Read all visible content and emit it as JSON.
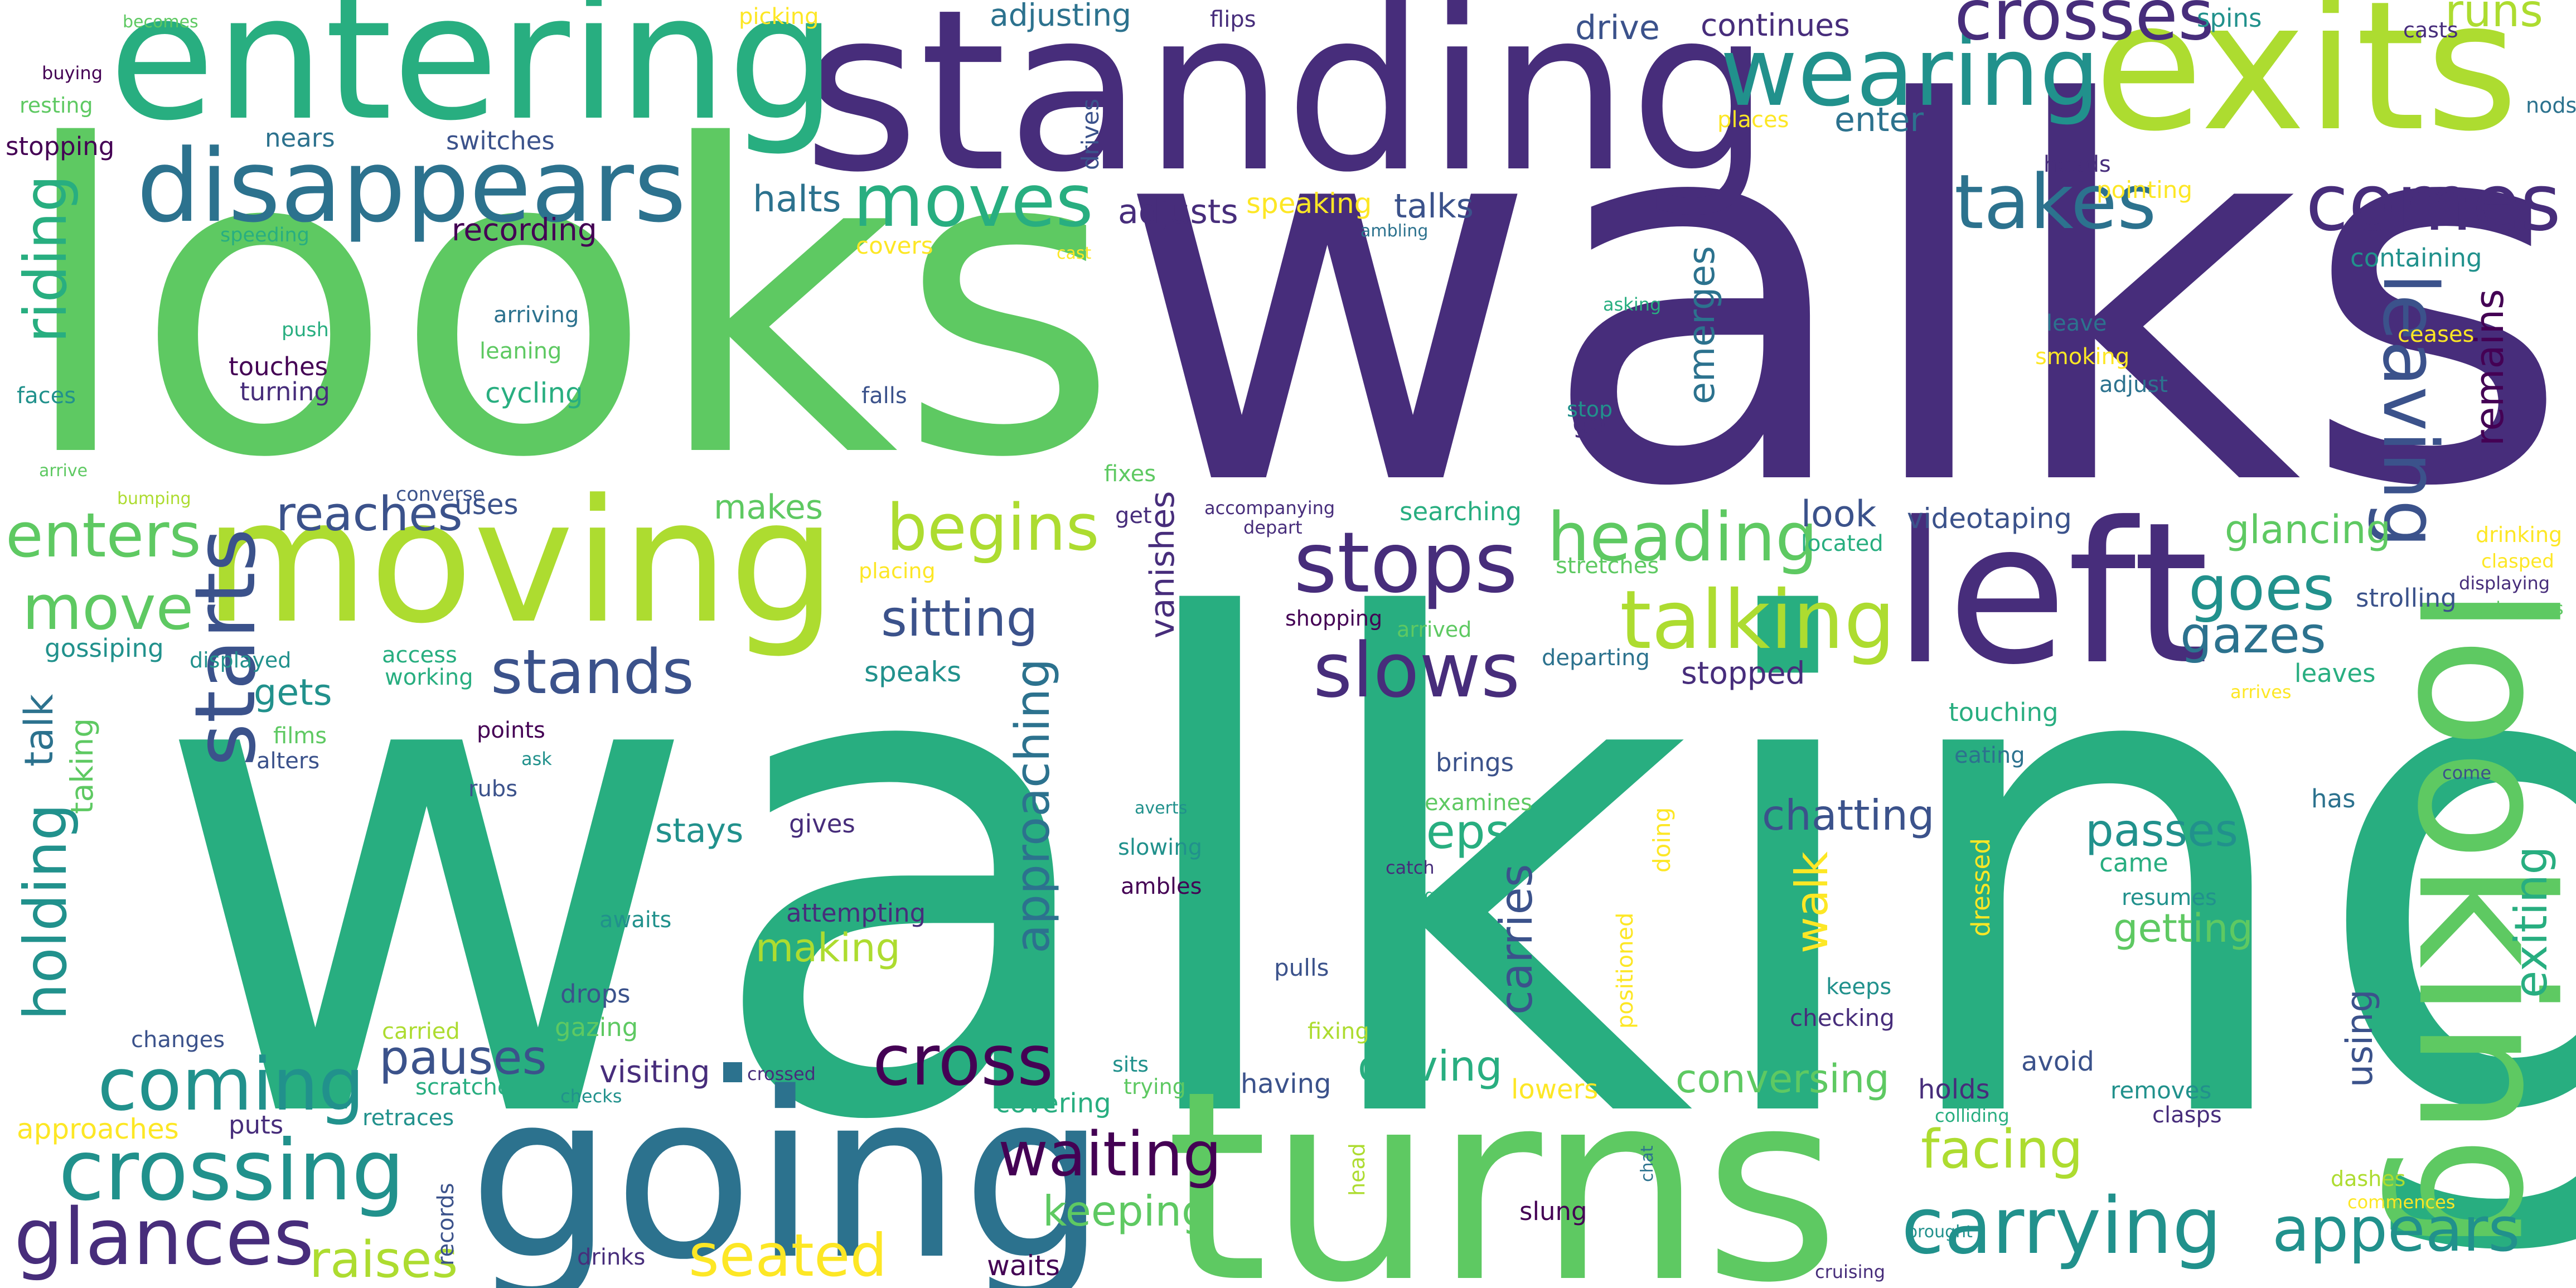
{
  "colors": {
    "c1": "#440154",
    "c2": "#472D7B",
    "c3": "#3B528B",
    "c4": "#2C728E",
    "c5": "#21918C",
    "c6": "#28AE80",
    "c7": "#5EC962",
    "c8": "#ADDC30",
    "c9": "#FDE725"
  },
  "words": [
    {
      "text": "walking",
      "color": "c6"
    },
    {
      "text": "walks",
      "color": "c2"
    },
    {
      "text": "looks",
      "color": "c7"
    },
    {
      "text": "turns",
      "color": "c7"
    },
    {
      "text": "going",
      "color": "c4"
    },
    {
      "text": "standing",
      "color": "c2"
    },
    {
      "text": "looking",
      "color": "c7"
    },
    {
      "text": "entering",
      "color": "c6"
    },
    {
      "text": "exits",
      "color": "c8"
    },
    {
      "text": "moving",
      "color": "c8"
    },
    {
      "text": "left",
      "color": "c2"
    },
    {
      "text": "disappears",
      "color": "c4"
    },
    {
      "text": "wearing",
      "color": "c5"
    },
    {
      "text": "crosses",
      "color": "c2"
    },
    {
      "text": "takes",
      "color": "c4"
    },
    {
      "text": "comes",
      "color": "c2"
    },
    {
      "text": "leaving",
      "color": "c3"
    },
    {
      "text": "moves",
      "color": "c6"
    },
    {
      "text": "stops",
      "color": "c2"
    },
    {
      "text": "slows",
      "color": "c2"
    },
    {
      "text": "talking",
      "color": "c8"
    },
    {
      "text": "heading",
      "color": "c7"
    },
    {
      "text": "goes",
      "color": "c5"
    },
    {
      "text": "gazes",
      "color": "c4"
    },
    {
      "text": "begins",
      "color": "c8"
    },
    {
      "text": "stands",
      "color": "c3"
    },
    {
      "text": "starts",
      "color": "c3"
    },
    {
      "text": "coming",
      "color": "c5"
    },
    {
      "text": "crossing",
      "color": "c5"
    },
    {
      "text": "glances",
      "color": "c2"
    },
    {
      "text": "cross",
      "color": "c1"
    },
    {
      "text": "waiting",
      "color": "c1"
    },
    {
      "text": "carrying",
      "color": "c5"
    },
    {
      "text": "appears",
      "color": "c5"
    },
    {
      "text": "enters",
      "color": "c7"
    },
    {
      "text": "move",
      "color": "c7"
    },
    {
      "text": "riding",
      "color": "c6"
    },
    {
      "text": "holding",
      "color": "c5"
    },
    {
      "text": "sitting",
      "color": "c3"
    },
    {
      "text": "steps",
      "color": "c6"
    },
    {
      "text": "passes",
      "color": "c5"
    },
    {
      "text": "seated",
      "color": "c9"
    },
    {
      "text": "raises",
      "color": "c8"
    },
    {
      "text": "pauses",
      "color": "c3"
    },
    {
      "text": "reaches",
      "color": "c3"
    },
    {
      "text": "facing",
      "color": "c8"
    },
    {
      "text": "chatting",
      "color": "c3"
    },
    {
      "text": "getting",
      "color": "c7"
    },
    {
      "text": "making",
      "color": "c8"
    },
    {
      "text": "conversing",
      "color": "c7"
    },
    {
      "text": "driving",
      "color": "c6"
    },
    {
      "text": "keeping",
      "color": "c7"
    },
    {
      "text": "approaching",
      "color": "c4"
    },
    {
      "text": "carries",
      "color": "c3"
    },
    {
      "text": "walk",
      "color": "c9"
    },
    {
      "text": "emerges",
      "color": "c4"
    },
    {
      "text": "remains",
      "color": "c1"
    },
    {
      "text": "glancing",
      "color": "c7"
    },
    {
      "text": "runs",
      "color": "c8"
    },
    {
      "text": "exiting",
      "color": "c6"
    },
    {
      "text": "halts",
      "color": "c4"
    },
    {
      "text": "adjusts",
      "color": "c2"
    },
    {
      "text": "talks",
      "color": "c3"
    },
    {
      "text": "drive",
      "color": "c3"
    },
    {
      "text": "continues",
      "color": "c2"
    },
    {
      "text": "enter",
      "color": "c4"
    },
    {
      "text": "adjusting",
      "color": "c4"
    },
    {
      "text": "spins",
      "color": "c5"
    },
    {
      "text": "recording",
      "color": "c1"
    },
    {
      "text": "speaking",
      "color": "c9"
    },
    {
      "text": "nears",
      "color": "c4"
    },
    {
      "text": "switches",
      "color": "c3"
    },
    {
      "text": "stopping",
      "color": "c1"
    },
    {
      "text": "look",
      "color": "c3"
    },
    {
      "text": "located",
      "color": "c6"
    },
    {
      "text": "videotaping",
      "color": "c3"
    },
    {
      "text": "stopped",
      "color": "c2"
    },
    {
      "text": "touching",
      "color": "c6"
    },
    {
      "text": "eating",
      "color": "c4"
    },
    {
      "text": "strolling",
      "color": "c3"
    },
    {
      "text": "leaves",
      "color": "c6"
    },
    {
      "text": "makes",
      "color": "c7"
    },
    {
      "text": "uses",
      "color": "c3"
    },
    {
      "text": "gets",
      "color": "c5"
    },
    {
      "text": "talk",
      "color": "c4"
    },
    {
      "text": "taking",
      "color": "c7"
    },
    {
      "text": "gossiping",
      "color": "c5"
    },
    {
      "text": "films",
      "color": "c7"
    },
    {
      "text": "alters",
      "color": "c3"
    },
    {
      "text": "points",
      "color": "c1"
    },
    {
      "text": "rubs",
      "color": "c3"
    },
    {
      "text": "stays",
      "color": "c5"
    },
    {
      "text": "gives",
      "color": "c2"
    },
    {
      "text": "brings",
      "color": "c3"
    },
    {
      "text": "examines",
      "color": "c7"
    },
    {
      "text": "slowing",
      "color": "c5"
    },
    {
      "text": "ambles",
      "color": "c1"
    },
    {
      "text": "attempting",
      "color": "c2"
    },
    {
      "text": "awaits",
      "color": "c5"
    },
    {
      "text": "drops",
      "color": "c3"
    },
    {
      "text": "gazing",
      "color": "c7"
    },
    {
      "text": "visiting",
      "color": "c2"
    },
    {
      "text": "carried",
      "color": "c8"
    },
    {
      "text": "changes",
      "color": "c3"
    },
    {
      "text": "scratches",
      "color": "c6"
    },
    {
      "text": "puts",
      "color": "c2"
    },
    {
      "text": "retraces",
      "color": "c5"
    },
    {
      "text": "approaches",
      "color": "c9"
    },
    {
      "text": "records",
      "color": "c3"
    },
    {
      "text": "drinks",
      "color": "c2"
    },
    {
      "text": "waits",
      "color": "c1"
    },
    {
      "text": "cycling",
      "color": "c6"
    },
    {
      "text": "touches",
      "color": "c1"
    },
    {
      "text": "turning",
      "color": "c2"
    },
    {
      "text": "faces",
      "color": "c5"
    },
    {
      "text": "arriving",
      "color": "c4"
    },
    {
      "text": "leaning",
      "color": "c7"
    },
    {
      "text": "push",
      "color": "c6"
    },
    {
      "text": "speeding",
      "color": "c6"
    },
    {
      "text": "arrive",
      "color": "c7"
    },
    {
      "text": "bumping",
      "color": "c8"
    },
    {
      "text": "converse",
      "color": "c3"
    },
    {
      "text": "falls",
      "color": "c3"
    },
    {
      "text": "fixes",
      "color": "c7"
    },
    {
      "text": "get",
      "color": "c2"
    },
    {
      "text": "accompanying",
      "color": "c2"
    },
    {
      "text": "depart",
      "color": "c2"
    },
    {
      "text": "vanishes",
      "color": "c2"
    },
    {
      "text": "placing",
      "color": "c9"
    },
    {
      "text": "shopping",
      "color": "c1"
    },
    {
      "text": "arrived",
      "color": "c7"
    },
    {
      "text": "searching",
      "color": "c6"
    },
    {
      "text": "departing",
      "color": "c4"
    },
    {
      "text": "stretches",
      "color": "c7"
    },
    {
      "text": "access",
      "color": "c6"
    },
    {
      "text": "working",
      "color": "c6"
    },
    {
      "text": "displayed",
      "color": "c5"
    },
    {
      "text": "speaks",
      "color": "c5"
    },
    {
      "text": "ask",
      "color": "c5"
    },
    {
      "text": "stop",
      "color": "c5"
    },
    {
      "text": "go",
      "color": "c2"
    },
    {
      "text": "asking",
      "color": "c6"
    },
    {
      "text": "covers",
      "color": "c9"
    },
    {
      "text": "cast",
      "color": "c9"
    },
    {
      "text": "ambling",
      "color": "c4"
    },
    {
      "text": "drives",
      "color": "c3"
    },
    {
      "text": "flips",
      "color": "c2"
    },
    {
      "text": "picking",
      "color": "c9"
    },
    {
      "text": "becomes",
      "color": "c7"
    },
    {
      "text": "buying",
      "color": "c1"
    },
    {
      "text": "resting",
      "color": "c7"
    },
    {
      "text": "heads",
      "color": "c2"
    },
    {
      "text": "places",
      "color": "c9"
    },
    {
      "text": "pointing",
      "color": "c9"
    },
    {
      "text": "casts",
      "color": "c2"
    },
    {
      "text": "nods",
      "color": "c4"
    },
    {
      "text": "containing",
      "color": "c5"
    },
    {
      "text": "leave",
      "color": "c4"
    },
    {
      "text": "smoking",
      "color": "c9"
    },
    {
      "text": "adjust",
      "color": "c4"
    },
    {
      "text": "ceases",
      "color": "c9"
    },
    {
      "text": "drinking",
      "color": "c9"
    },
    {
      "text": "clasped",
      "color": "c9"
    },
    {
      "text": "displaying",
      "color": "c2"
    },
    {
      "text": "advances",
      "color": "c7"
    },
    {
      "text": "arrives",
      "color": "c9"
    },
    {
      "text": "come",
      "color": "c3"
    },
    {
      "text": "has",
      "color": "c4"
    },
    {
      "text": "came",
      "color": "c6"
    },
    {
      "text": "resumes",
      "color": "c5"
    },
    {
      "text": "dressed",
      "color": "c9"
    },
    {
      "text": "doing",
      "color": "c9"
    },
    {
      "text": "positioned",
      "color": "c9"
    },
    {
      "text": "using",
      "color": "c3"
    },
    {
      "text": "keeps",
      "color": "c5"
    },
    {
      "text": "checking",
      "color": "c2"
    },
    {
      "text": "pulls",
      "color": "c3"
    },
    {
      "text": "catch",
      "color": "c2"
    },
    {
      "text": "digging",
      "color": "c6"
    },
    {
      "text": "averts",
      "color": "c5"
    },
    {
      "text": "sits",
      "color": "c5"
    },
    {
      "text": "trying",
      "color": "c7"
    },
    {
      "text": "fixing",
      "color": "c8"
    },
    {
      "text": "having",
      "color": "c3"
    },
    {
      "text": "covering",
      "color": "c6"
    },
    {
      "text": "crossed",
      "color": "c2"
    },
    {
      "text": "checks",
      "color": "c5"
    },
    {
      "text": "lowers",
      "color": "c9"
    },
    {
      "text": "holds",
      "color": "c2"
    },
    {
      "text": "avoid",
      "color": "c3"
    },
    {
      "text": "removes",
      "color": "c5"
    },
    {
      "text": "clasps",
      "color": "c2"
    },
    {
      "text": "colliding",
      "color": "c6"
    },
    {
      "text": "head",
      "color": "c8"
    },
    {
      "text": "chat",
      "color": "c4"
    },
    {
      "text": "brought",
      "color": "c5"
    },
    {
      "text": "slung",
      "color": "c1"
    },
    {
      "text": "dashes",
      "color": "c8"
    },
    {
      "text": "commences",
      "color": "c9"
    },
    {
      "text": "cruising",
      "color": "c2"
    }
  ]
}
